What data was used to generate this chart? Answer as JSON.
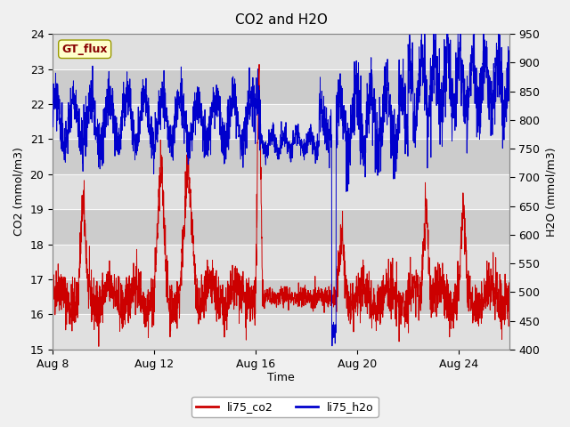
{
  "title": "CO2 and H2O",
  "xlabel": "Time",
  "ylabel_left": "CO2 (mmol/m3)",
  "ylabel_right": "H2O (mmol/m3)",
  "ylim_left": [
    15.0,
    24.0
  ],
  "ylim_right": [
    400,
    950
  ],
  "yticks_left": [
    15.0,
    16.0,
    17.0,
    18.0,
    19.0,
    20.0,
    21.0,
    22.0,
    23.0,
    24.0
  ],
  "yticks_right": [
    400,
    450,
    500,
    550,
    600,
    650,
    700,
    750,
    800,
    850,
    900,
    950
  ],
  "bg_color": "#f0f0f0",
  "plot_bg_color": "#e8e8e8",
  "stripe_light": "#d8d8d8",
  "stripe_dark": "#c8c8c8",
  "co2_color": "#cc0000",
  "h2o_color": "#0000cc",
  "legend_label_co2": "li75_co2",
  "legend_label_h2o": "li75_h2o",
  "watermark_text": "GT_flux",
  "watermark_color": "#880000",
  "watermark_bg": "#ffffcc",
  "xtick_dates": [
    "Aug 8",
    "Aug 12",
    "Aug 16",
    "Aug 20",
    "Aug 24"
  ],
  "xtick_positions": [
    0,
    4,
    8,
    12,
    16
  ],
  "xlim": [
    0,
    18
  ]
}
